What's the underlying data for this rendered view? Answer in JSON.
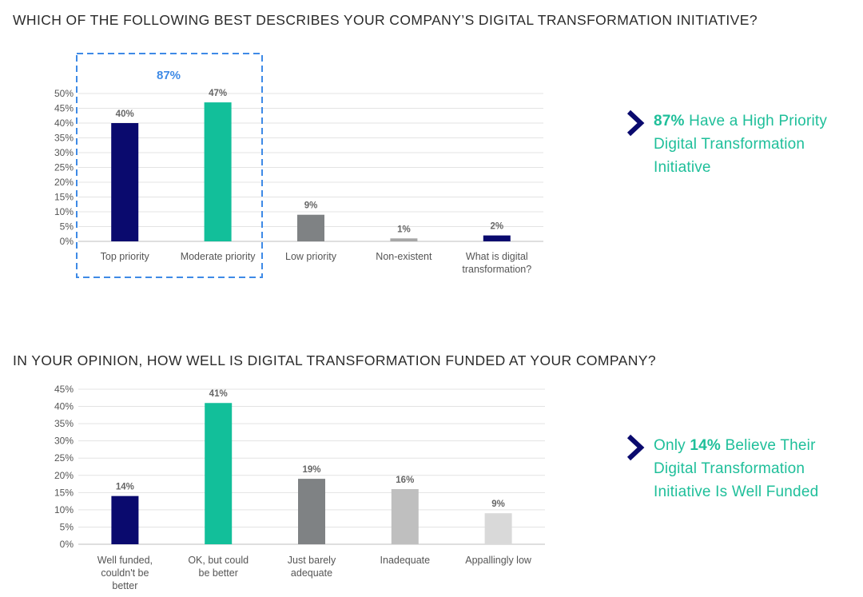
{
  "colors": {
    "navy": "#0a0a6e",
    "teal": "#12bf9a",
    "gray": "#7f8284",
    "lightgray": "#bfbfbf",
    "lightergray": "#d9d9d9",
    "highlight_blue": "#3e8ae6",
    "callout_text": "#1fbf9a"
  },
  "q1": {
    "title": "WHICH OF THE FOLLOWING BEST DESCRIBES YOUR COMPANY’S DIGITAL TRANSFORMATION INITIATIVE?",
    "highlight_label": "87%",
    "callout": {
      "prefix": "",
      "bold": "87%",
      "rest": " Have a High Priority Digital Transformation Initiative",
      "icon": "chevron-right-icon"
    }
  },
  "q2": {
    "title": "IN YOUR OPINION, HOW WELL IS DIGITAL TRANSFORMATION FUNDED AT YOUR COMPANY?",
    "callout": {
      "prefix": "Only ",
      "bold": "14%",
      "rest": " Believe Their Digital Transformation Initiative Is Well Funded",
      "icon": "chevron-right-icon"
    }
  },
  "chart_data": [
    {
      "type": "bar",
      "title": "WHICH OF THE FOLLOWING BEST DESCRIBES YOUR COMPANY’S DIGITAL TRANSFORMATION INITIATIVE?",
      "categories": [
        "Top priority",
        "Moderate priority",
        "Low priority",
        "Non-existent",
        "What is digital transformation?"
      ],
      "category_lines": [
        [
          "Top priority"
        ],
        [
          "Moderate priority"
        ],
        [
          "Low priority"
        ],
        [
          "Non-existent"
        ],
        [
          "What is digital",
          "transformation?"
        ]
      ],
      "values": [
        40,
        47,
        9,
        1,
        2
      ],
      "value_labels": [
        "40%",
        "47%",
        "9%",
        "1%",
        "2%"
      ],
      "bar_colors": [
        "#0a0a6e",
        "#12bf9a",
        "#7f8284",
        "#a6a6a6",
        "#0a0a6e"
      ],
      "yticks": [
        "0%",
        "5%",
        "10%",
        "15%",
        "20%",
        "25%",
        "30%",
        "35%",
        "40%",
        "45%",
        "50%"
      ],
      "ylim": [
        0,
        50
      ],
      "grid": true,
      "xlabel": "",
      "ylabel": ""
    },
    {
      "type": "bar",
      "title": "IN YOUR OPINION, HOW WELL IS DIGITAL TRANSFORMATION FUNDED AT YOUR COMPANY?",
      "categories": [
        "Well funded, couldn't be better",
        "OK, but could be better",
        "Just barely adequate",
        "Inadequate",
        "Appallingly low"
      ],
      "category_lines": [
        [
          "Well funded,",
          "couldn't be",
          "better"
        ],
        [
          "OK, but could",
          "be better"
        ],
        [
          "Just barely",
          "adequate"
        ],
        [
          "Inadequate"
        ],
        [
          "Appallingly low"
        ]
      ],
      "values": [
        14,
        41,
        19,
        16,
        9
      ],
      "value_labels": [
        "14%",
        "41%",
        "19%",
        "16%",
        "9%"
      ],
      "bar_colors": [
        "#0a0a6e",
        "#12bf9a",
        "#7f8284",
        "#bfbfbf",
        "#d9d9d9"
      ],
      "yticks": [
        "0%",
        "5%",
        "10%",
        "15%",
        "20%",
        "25%",
        "30%",
        "35%",
        "40%",
        "45%"
      ],
      "ylim": [
        0,
        45
      ],
      "grid": true,
      "xlabel": "",
      "ylabel": ""
    }
  ]
}
